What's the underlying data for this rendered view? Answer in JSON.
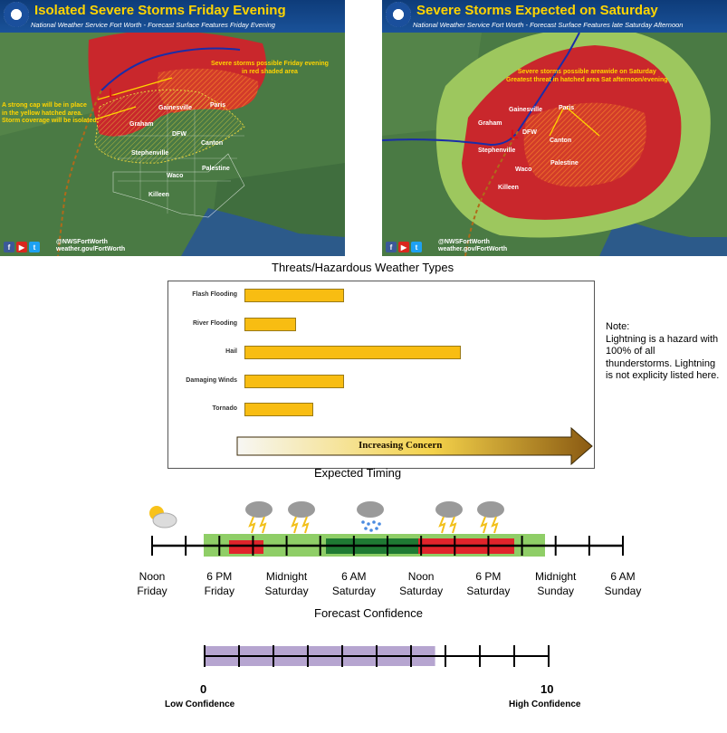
{
  "maps": {
    "left": {
      "title": "Isolated Severe Storms Friday Evening",
      "subtitle": "National Weather Service Fort Worth - Forecast Surface Features Friday Evening",
      "notes": [
        "Severe storms possible Friday evening",
        "in red shaded area"
      ],
      "cap_note": [
        "A strong cap will be in place",
        "in the yellow hatched area.",
        "Storm coverage will be isolated."
      ],
      "cities": [
        "Gainesville",
        "Paris",
        "Graham",
        "DFW",
        "Canton",
        "Stephenville",
        "Palestine",
        "Waco",
        "Killeen"
      ],
      "low_symbol": "L",
      "handle": "@NWSFortWorth",
      "url": "weather.gov/FortWorth"
    },
    "right": {
      "title": "Severe Storms Expected on Saturday",
      "subtitle": "National Weather Service Fort Worth - Forecast Surface Features late Saturday Afternoon",
      "notes": [
        "Severe storms possible areawide on Saturday",
        "Greatest threat in hatched area Sat afternoon/evening"
      ],
      "cities": [
        "Gainesville",
        "Paris",
        "Graham",
        "DFW",
        "Stephenville",
        "Canton",
        "Palestine",
        "Waco",
        "Killeen"
      ],
      "low_symbol": "L",
      "handle": "@NWSFortWorth",
      "url": "weather.gov/FortWorth"
    }
  },
  "threats": {
    "title": "Threats/Hazardous Weather Types",
    "axis_label": "Increasing Concern",
    "items": [
      {
        "label": "Flash Flooding",
        "level": 0.29
      },
      {
        "label": "River Flooding",
        "level": 0.15
      },
      {
        "label": "Hail",
        "level": 0.63
      },
      {
        "label": "Damaging Winds",
        "level": 0.29
      },
      {
        "label": "Tornado",
        "level": 0.2
      }
    ],
    "bar_color": "#f8bd12"
  },
  "note": {
    "heading": "Note:",
    "text": "Lightning is a hazard with 100% of all thunderstorms. Lightning is not explicity listed here."
  },
  "timing": {
    "title": "Expected Timing",
    "labels": [
      [
        "Noon",
        "Friday"
      ],
      [
        "6 PM",
        "Friday"
      ],
      [
        "Midnight",
        "Saturday"
      ],
      [
        "6 AM",
        "Saturday"
      ],
      [
        "Noon",
        "Saturday"
      ],
      [
        "6 PM",
        "Saturday"
      ],
      [
        "Midnight",
        "Sunday"
      ],
      [
        "6 AM",
        "Sunday"
      ]
    ],
    "icons": [
      "partly-cloudy-icon",
      "thunderstorm-icon",
      "thunderstorm-icon",
      "rain-icon",
      "thunderstorm-icon",
      "thunderstorm-icon"
    ],
    "colors": {
      "light_green": "#8fce67",
      "dark_green": "#1f7a33",
      "red": "#e0242b"
    }
  },
  "confidence": {
    "title": "Forecast Confidence",
    "min_label": "0",
    "max_label": "10",
    "low_label": "Low Confidence",
    "high_label": "High Confidence",
    "value_min": 0,
    "value_max": 6.7,
    "scale_max": 10,
    "fill_color": "#b6a5d0"
  }
}
